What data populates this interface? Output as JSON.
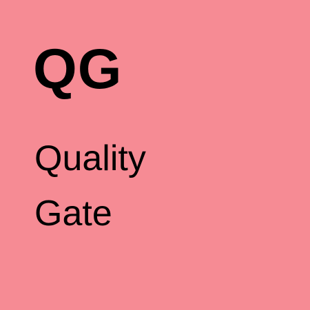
{
  "tile": {
    "background_color": "#F68B94",
    "text_color": "#000000",
    "abbreviation": "QG",
    "name_lines": [
      "Quality",
      "Gate"
    ]
  }
}
